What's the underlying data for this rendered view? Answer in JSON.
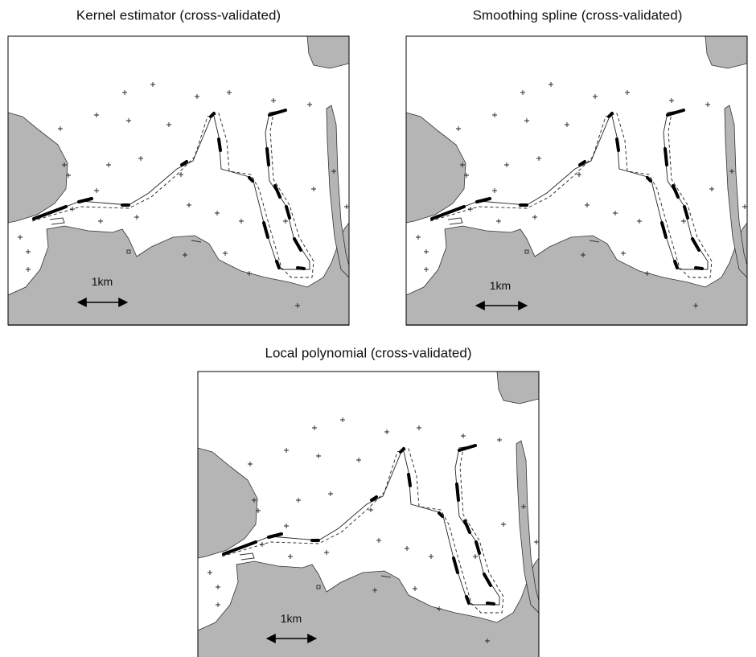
{
  "panels": [
    {
      "title": "Kernel estimator (cross-validated)",
      "scale_label": "1km"
    },
    {
      "title": "Smoothing spline (cross-validated)",
      "scale_label": "1km"
    },
    {
      "title": "Local polynomial (cross-validated)",
      "scale_label": "1km"
    }
  ]
}
